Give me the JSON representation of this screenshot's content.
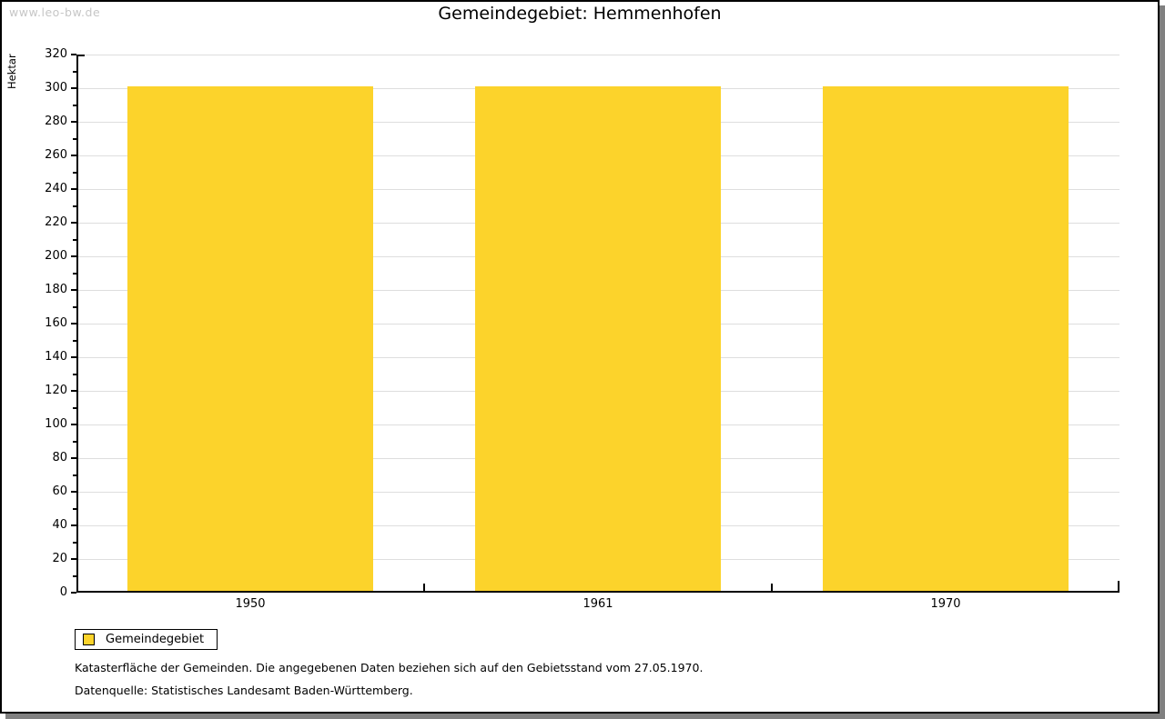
{
  "watermark": {
    "text": "www.leo-bw.de"
  },
  "header": {
    "title": "Gemeindegebiet: Hemmenhofen"
  },
  "chart_data": {
    "type": "bar",
    "title": "Gemeindegebiet: Hemmenhofen",
    "categories": [
      "1950",
      "1961",
      "1970"
    ],
    "series": [
      {
        "name": "Gemeindegebiet",
        "values": [
          301,
          301,
          301
        ]
      }
    ],
    "xlabel": "",
    "ylabel": "Hektar",
    "ylim": [
      0,
      320
    ],
    "y_major_step": 20,
    "y_minor_step": 10,
    "grid": true,
    "legend_position": "bottom-left",
    "bar_width_fraction": 0.705
  },
  "legend": {
    "entries": [
      {
        "label": "Gemeindegebiet",
        "color": "#FCD32B"
      }
    ]
  },
  "footer": {
    "line1": "Katasterfläche der Gemeinden. Die angegebenen Daten beziehen sich auf den Gebietsstand vom 27.05.1970.",
    "line2": "Datenquelle: Statistisches Landesamt Baden-Württemberg."
  },
  "colors": {
    "bar": "#FCD32B",
    "gridline": "#DEDEDE",
    "axis": "#000000",
    "watermark": "#C6C6C6",
    "background": "#FFFFFF",
    "frame_shadow": "#808080"
  }
}
